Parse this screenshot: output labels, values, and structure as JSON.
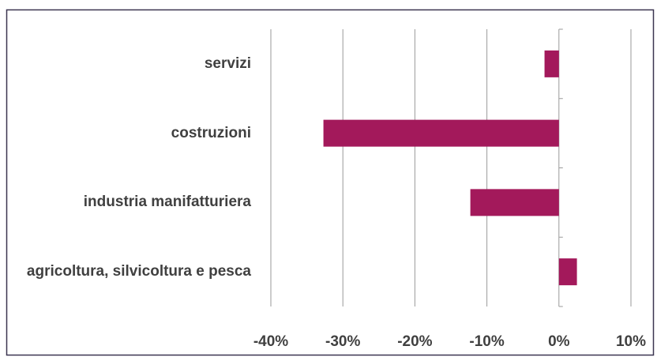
{
  "chart_data": {
    "type": "bar",
    "orientation": "horizontal",
    "categories": [
      "servizi",
      "costruzioni",
      "industria manifatturiera",
      "agricoltura, silvicoltura e pesca"
    ],
    "values": [
      -2,
      -32.7,
      -12.3,
      2.5
    ],
    "color": "#a3195b",
    "xlim": [
      -40,
      10
    ],
    "xticks": [
      {
        "value": -40,
        "label": "-40%"
      },
      {
        "value": -30,
        "label": "-30%"
      },
      {
        "value": -20,
        "label": "-20%"
      },
      {
        "value": -10,
        "label": "-10%"
      },
      {
        "value": 0,
        "label": "0%"
      },
      {
        "value": 10,
        "label": "10%"
      }
    ],
    "grid": true
  }
}
